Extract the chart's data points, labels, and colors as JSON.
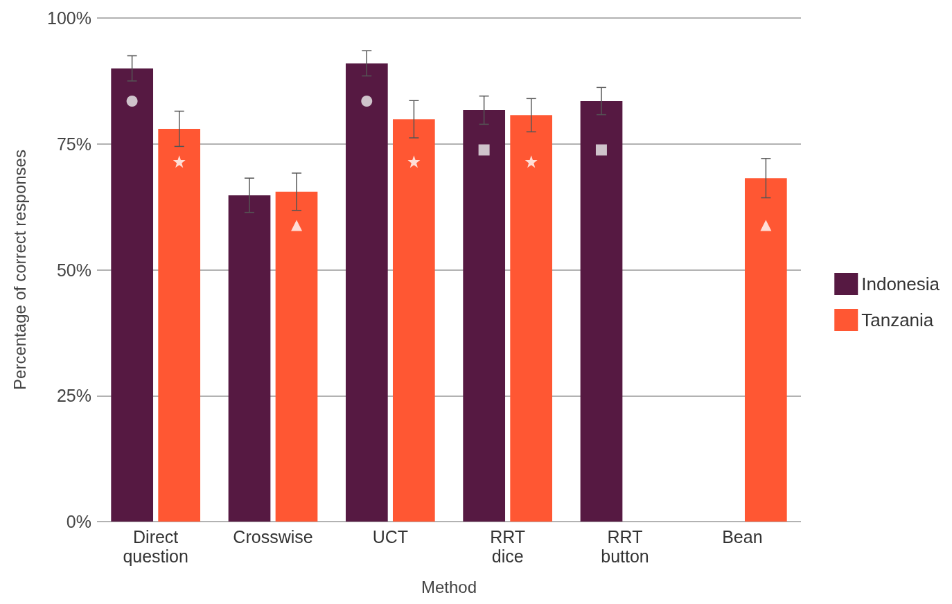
{
  "chart_data": {
    "type": "bar",
    "xlabel": "Method",
    "ylabel": "Percentage of correct responses",
    "categories": [
      "Direct\nquestion",
      "Crosswise",
      "UCT",
      "RRT\ndice",
      "RRT\nbutton",
      "Bean"
    ],
    "series": [
      {
        "name": "Indonesia",
        "color": "#561942",
        "values": [
          90,
          64.8,
          91,
          81.7,
          83.5,
          null
        ],
        "errors": [
          2.5,
          3.4,
          2.5,
          2.8,
          2.7,
          null
        ]
      },
      {
        "type": "scatter",
        "marker": "circle",
        "color": "#eeeeee",
        "values": [
          83.5,
          null,
          83.5,
          null,
          null,
          null
        ]
      },
      {
        "type": "scatter",
        "marker": "square",
        "color": "#eeeeee",
        "values": [
          null,
          null,
          null,
          73.8,
          73.8,
          null
        ]
      },
      {
        "name": "Tanzania",
        "color": "#ff5733",
        "values": [
          78,
          65.5,
          79.9,
          80.7,
          null,
          68.2
        ],
        "errors": [
          3.5,
          3.7,
          3.7,
          3.3,
          null,
          3.9
        ]
      },
      {
        "type": "scatter",
        "marker": "star",
        "color": "#ffffff",
        "values": [
          71.5,
          null,
          71.5,
          71.5,
          null,
          null
        ]
      },
      {
        "type": "scatter",
        "marker": "triangle",
        "color": "#ffffff",
        "values": [
          null,
          58.8,
          null,
          null,
          null,
          58.8
        ]
      }
    ],
    "ylim": [
      0,
      100
    ],
    "yticks": [
      {
        "value": 0,
        "label": "0%"
      },
      {
        "value": 25,
        "label": "25%"
      },
      {
        "value": 50,
        "label": "50%"
      },
      {
        "value": 75,
        "label": "75%"
      },
      {
        "value": 100,
        "label": "100%"
      }
    ],
    "grid": "y",
    "legend": "right"
  }
}
